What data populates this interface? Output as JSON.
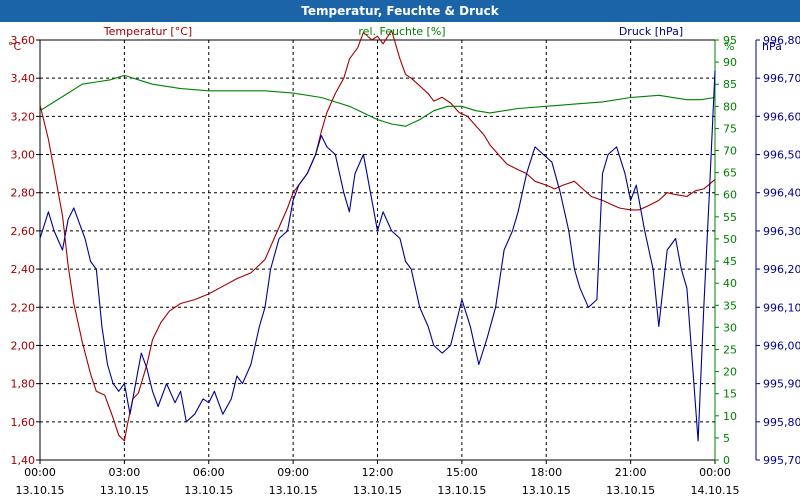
{
  "window_title": "Temperatur, Feuchte & Druck",
  "chart_data": {
    "type": "line",
    "x_tick_times": [
      "00:00",
      "03:00",
      "06:00",
      "09:00",
      "12:00",
      "15:00",
      "18:00",
      "21:00",
      "00:00"
    ],
    "x_tick_dates": [
      "13.10.15",
      "13.10.15",
      "13.10.15",
      "13.10.15",
      "13.10.15",
      "13.10.15",
      "13.10.15",
      "13.10.15",
      "14.10.15"
    ],
    "axes": {
      "temperature": {
        "label": "Temperatur [°C]",
        "unit": "°C",
        "min": 1.4,
        "max": 3.6,
        "ticks": [
          "1,40",
          "1,60",
          "1,80",
          "2,00",
          "2,20",
          "2,40",
          "2,60",
          "2,80",
          "3,00",
          "3,20",
          "3,40",
          "3,60"
        ],
        "color": "#a00000"
      },
      "humidity": {
        "label": "rel. Feuchte [%]",
        "unit": "%",
        "min": 0,
        "max": 95,
        "ticks": [
          "0",
          "5",
          "10",
          "15",
          "20",
          "25",
          "30",
          "35",
          "40",
          "45",
          "50",
          "55",
          "60",
          "65",
          "70",
          "75",
          "80",
          "85",
          "90",
          "95"
        ],
        "color": "#008000"
      },
      "pressure": {
        "label": "Druck [hPa]",
        "unit": "hPa",
        "min": 995.7,
        "max": 996.8,
        "ticks": [
          "995,70",
          "995,80",
          "995,90",
          "996,00",
          "996,10",
          "996,20",
          "996,30",
          "996,40",
          "996,50",
          "996,60",
          "996,70",
          "996,80"
        ],
        "color": "#000090"
      }
    },
    "grid": true,
    "series": [
      {
        "name": "Temperatur [°C]",
        "axis": "temperature",
        "color": "#a00000",
        "x": [
          0,
          0.3,
          0.5,
          0.8,
          1.0,
          1.2,
          1.5,
          1.8,
          2.0,
          2.3,
          2.6,
          2.8,
          3.0,
          3.1,
          3.3,
          3.5,
          3.8,
          4.0,
          4.3,
          4.6,
          5.0,
          5.5,
          6.0,
          6.5,
          7.0,
          7.5,
          8.0,
          8.5,
          8.8,
          9.0,
          9.3,
          9.5,
          9.8,
          10.0,
          10.2,
          10.5,
          10.8,
          11.0,
          11.3,
          11.5,
          11.8,
          12.0,
          12.2,
          12.5,
          12.8,
          13.0,
          13.2,
          13.5,
          13.8,
          14.0,
          14.3,
          14.6,
          14.9,
          15.2,
          15.5,
          15.8,
          16.0,
          16.3,
          16.6,
          17.0,
          17.3,
          17.6,
          18.0,
          18.3,
          18.6,
          19.0,
          19.3,
          19.6,
          20.0,
          20.3,
          20.6,
          21.0,
          21.3,
          21.6,
          22.0,
          22.3,
          22.6,
          23.0,
          23.3,
          23.6,
          24.0
        ],
        "y": [
          3.26,
          3.08,
          2.92,
          2.68,
          2.42,
          2.22,
          2.02,
          1.85,
          1.76,
          1.74,
          1.62,
          1.53,
          1.5,
          1.58,
          1.72,
          1.75,
          1.9,
          2.03,
          2.12,
          2.18,
          2.22,
          2.24,
          2.27,
          2.31,
          2.35,
          2.38,
          2.45,
          2.62,
          2.72,
          2.8,
          2.86,
          2.9,
          3.0,
          3.12,
          3.22,
          3.32,
          3.4,
          3.5,
          3.56,
          3.64,
          3.6,
          3.62,
          3.58,
          3.65,
          3.5,
          3.42,
          3.4,
          3.36,
          3.32,
          3.28,
          3.3,
          3.27,
          3.22,
          3.2,
          3.15,
          3.1,
          3.05,
          3.0,
          2.95,
          2.92,
          2.9,
          2.86,
          2.84,
          2.82,
          2.84,
          2.86,
          2.82,
          2.78,
          2.76,
          2.74,
          2.72,
          2.71,
          2.71,
          2.73,
          2.76,
          2.8,
          2.79,
          2.78,
          2.81,
          2.82,
          2.87
        ]
      },
      {
        "name": "rel. Feuchte [%]",
        "axis": "humidity",
        "color": "#008000",
        "x": [
          0,
          0.5,
          1,
          1.5,
          2,
          2.5,
          3,
          3.5,
          4,
          5,
          6,
          7,
          8,
          9,
          10,
          10.5,
          11,
          11.5,
          12,
          12.5,
          13,
          13.5,
          14,
          14.5,
          15,
          15.5,
          16,
          17,
          18,
          19,
          20,
          21,
          22,
          23,
          23.5,
          24
        ],
        "y": [
          79,
          81,
          83,
          85,
          85.5,
          86,
          87,
          86,
          85,
          84,
          83.5,
          83.5,
          83.5,
          83,
          82,
          81,
          80,
          78.5,
          77,
          76,
          75.5,
          77,
          79,
          80,
          80,
          79,
          78.5,
          79.5,
          80,
          80.5,
          81,
          82,
          82.5,
          81.5,
          81.5,
          82
        ]
      },
      {
        "name": "Druck [hPa]",
        "axis": "pressure",
        "color": "#000090",
        "x": [
          0,
          0.3,
          0.5,
          0.8,
          1.0,
          1.2,
          1.4,
          1.6,
          1.8,
          2.0,
          2.2,
          2.4,
          2.6,
          2.8,
          3.0,
          3.2,
          3.4,
          3.6,
          3.8,
          4.0,
          4.2,
          4.5,
          4.8,
          5.0,
          5.2,
          5.5,
          5.8,
          6.0,
          6.2,
          6.5,
          6.8,
          7.0,
          7.2,
          7.5,
          7.8,
          8.0,
          8.2,
          8.5,
          8.8,
          9.0,
          9.2,
          9.5,
          9.8,
          10.0,
          10.2,
          10.5,
          10.8,
          11.0,
          11.2,
          11.5,
          11.8,
          12.0,
          12.2,
          12.5,
          12.8,
          13.0,
          13.2,
          13.5,
          13.8,
          14.0,
          14.3,
          14.6,
          15.0,
          15.3,
          15.6,
          15.9,
          16.2,
          16.5,
          16.8,
          17.0,
          17.3,
          17.6,
          17.9,
          18.2,
          18.5,
          18.8,
          19.0,
          19.2,
          19.5,
          19.8,
          20.0,
          20.2,
          20.5,
          20.8,
          21.0,
          21.2,
          21.5,
          21.8,
          22.0,
          22.3,
          22.6,
          22.8,
          23.0,
          23.2,
          23.4,
          23.6,
          23.8,
          24.0
        ],
        "y": [
          996.28,
          996.35,
          996.3,
          996.25,
          996.33,
          996.36,
          996.32,
          996.28,
          996.22,
          996.2,
          996.05,
          995.95,
          995.9,
          995.88,
          995.9,
          995.82,
          995.9,
          995.98,
          995.94,
          995.88,
          995.84,
          995.9,
          995.85,
          995.88,
          995.8,
          995.82,
          995.86,
          995.85,
          995.88,
          995.82,
          995.86,
          995.92,
          995.9,
          995.95,
          996.05,
          996.1,
          996.2,
          996.28,
          996.3,
          996.38,
          996.42,
          996.45,
          996.5,
          996.55,
          996.52,
          996.5,
          996.4,
          996.35,
          996.45,
          996.5,
          996.38,
          996.3,
          996.35,
          996.3,
          996.28,
          996.22,
          996.2,
          996.1,
          996.05,
          996.0,
          995.98,
          996.0,
          996.12,
          996.05,
          995.95,
          996.02,
          996.1,
          996.25,
          996.3,
          996.35,
          996.45,
          996.52,
          996.5,
          996.48,
          996.4,
          996.3,
          996.2,
          996.15,
          996.1,
          996.12,
          996.45,
          996.5,
          996.52,
          996.45,
          996.38,
          996.42,
          996.3,
          996.2,
          996.05,
          996.25,
          996.28,
          996.2,
          996.15,
          995.95,
          995.75,
          996.1,
          996.4,
          996.72
        ]
      }
    ]
  }
}
